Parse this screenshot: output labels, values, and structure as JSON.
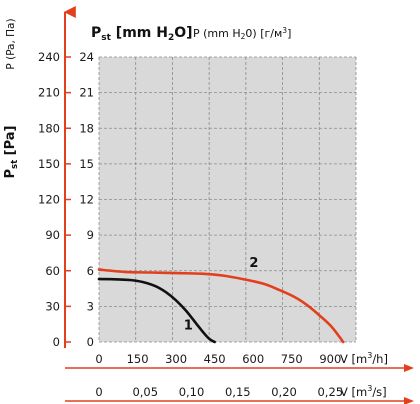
{
  "chart_data": {
    "type": "line",
    "title_primary": {
      "main": "P",
      "sub": "st",
      "rest": " [mm H",
      "sub2": "2",
      "rest2": "O]"
    },
    "title_secondary": {
      "main": "P (mm H",
      "sub": "2",
      "rest": "0) [г/м",
      "sup": "3",
      "rest2": "]"
    },
    "ylabel_left": {
      "main": "P",
      "sub": "st",
      "rest": " [Pa]"
    },
    "ylabel_left_alt": "P (Pa, Па)",
    "y_pa_ticks": [
      "0",
      "30",
      "60",
      "90",
      "120",
      "150",
      "180",
      "210",
      "240"
    ],
    "y_mm_ticks": [
      "0",
      "3",
      "6",
      "9",
      "12",
      "15",
      "18",
      "21",
      "24"
    ],
    "x_m3h_ticks": [
      "0",
      "150",
      "300",
      "450",
      "600",
      "750",
      "900"
    ],
    "x_m3h_label": {
      "main": "V [m",
      "sup": "3",
      "rest": "/h]"
    },
    "x_m3s_ticks": [
      "0",
      "0,05",
      "0,10",
      "0,15",
      "0,20",
      "0,25"
    ],
    "x_m3s_label": {
      "main": "V [m",
      "sup": "3",
      "rest": "/s]"
    },
    "xlim_m3h": [
      0,
      1000
    ],
    "ylim_pa": [
      0,
      240
    ],
    "grid": true,
    "colors": {
      "series1": "#111111",
      "series2": "#e2401c",
      "axis": "#e2401c",
      "plot_bg": "#d9d9d9"
    },
    "series": [
      {
        "name": "1",
        "x": [
          0,
          60,
          120,
          170,
          220,
          260,
          300,
          340,
          380,
          410,
          430,
          450
        ],
        "y": [
          53,
          52.8,
          52.2,
          50.5,
          47,
          42,
          35,
          26,
          15,
          7,
          2.5,
          0
        ]
      },
      {
        "name": "2",
        "x": [
          0,
          100,
          200,
          300,
          400,
          480,
          560,
          640,
          700,
          760,
          810,
          860,
          900,
          930,
          950
        ],
        "y": [
          61,
          59,
          58.5,
          58,
          57.5,
          56,
          53,
          49,
          44,
          38,
          31,
          22,
          14,
          6,
          0
        ]
      }
    ]
  }
}
